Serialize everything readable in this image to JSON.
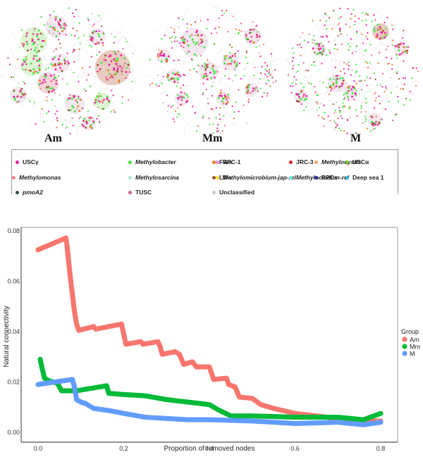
{
  "networks": [
    {
      "label": "Am"
    },
    {
      "label": "Mm"
    },
    {
      "label": "M"
    }
  ],
  "network_legend": [
    {
      "name": "USCγ",
      "italic": false,
      "color": "#ee1fa5"
    },
    {
      "name": "Methylobacter",
      "italic": true,
      "color": "#3fe53f"
    },
    {
      "name": "FWs",
      "italic": false,
      "color": "#e67e22"
    },
    {
      "name": "Methylocystis",
      "italic": true,
      "color": "#f0a070"
    },
    {
      "name": "RPC-1",
      "italic": false,
      "color": "#e57ee0"
    },
    {
      "name": "JRC-3",
      "italic": false,
      "color": "#e01f1f"
    },
    {
      "name": "USCα",
      "italic": false,
      "color": "#6cbf2a"
    },
    {
      "name": "Methylomonas",
      "italic": true,
      "color": "#f08080"
    },
    {
      "name": "Methylosarcina",
      "italic": true,
      "color": "#a8ecc8"
    },
    {
      "name": "LWs",
      "italic": false,
      "color": "#a0522d"
    },
    {
      "name": "RPCs",
      "italic": false,
      "color": "#3a3ae8"
    },
    {
      "name": "Methylomicrobium-jap-rel",
      "italic": true,
      "color": "#f0e030"
    },
    {
      "name": "Methylocaldum-rel",
      "italic": true,
      "color": "#70e8e8"
    },
    {
      "name": "Deep sea 1",
      "italic": false,
      "color": "#30b8e8"
    },
    {
      "name": "pmoA2",
      "italic": true,
      "color": "#2f4f3f"
    },
    {
      "name": "TUSC",
      "italic": false,
      "color": "#d0608a"
    },
    {
      "name": "Unclassified",
      "italic": false,
      "color": "#c8c8c8"
    }
  ],
  "chart_data": {
    "type": "scatter",
    "title": "",
    "xlabel": "Proportion of removed nodes",
    "ylabel": "Natural connectivity",
    "xlim": [
      -0.04,
      0.84
    ],
    "ylim": [
      -0.004,
      0.08
    ],
    "xticks": [
      "0.0",
      "0.2",
      "0.4",
      "0.6",
      "0.8"
    ],
    "yticks": [
      "0.00",
      "0.02",
      "0.04",
      "0.06",
      "0.08"
    ],
    "grid": false,
    "legend": {
      "title": "Group",
      "position": "right"
    },
    "series": [
      {
        "name": "Am",
        "color": "#f8766d",
        "points": [
          [
            0.0,
            0.0725
          ],
          [
            0.065,
            0.0772
          ],
          [
            0.067,
            0.075
          ],
          [
            0.07,
            0.07
          ],
          [
            0.075,
            0.062
          ],
          [
            0.08,
            0.055
          ],
          [
            0.085,
            0.048
          ],
          [
            0.09,
            0.043
          ],
          [
            0.095,
            0.0405
          ],
          [
            0.13,
            0.042
          ],
          [
            0.135,
            0.041
          ],
          [
            0.195,
            0.043
          ],
          [
            0.2,
            0.039
          ],
          [
            0.205,
            0.035
          ],
          [
            0.24,
            0.036
          ],
          [
            0.245,
            0.035
          ],
          [
            0.28,
            0.036
          ],
          [
            0.285,
            0.034
          ],
          [
            0.29,
            0.031
          ],
          [
            0.32,
            0.032
          ],
          [
            0.33,
            0.031
          ],
          [
            0.34,
            0.027
          ],
          [
            0.36,
            0.028
          ],
          [
            0.37,
            0.026
          ],
          [
            0.4,
            0.026
          ],
          [
            0.41,
            0.021
          ],
          [
            0.44,
            0.0215
          ],
          [
            0.445,
            0.019
          ],
          [
            0.46,
            0.018
          ],
          [
            0.47,
            0.014
          ],
          [
            0.5,
            0.0135
          ],
          [
            0.52,
            0.011
          ],
          [
            0.55,
            0.0095
          ],
          [
            0.6,
            0.0075
          ],
          [
            0.65,
            0.0065
          ],
          [
            0.7,
            0.0055
          ],
          [
            0.75,
            0.0045
          ],
          [
            0.8,
            0.0045
          ]
        ]
      },
      {
        "name": "Mm",
        "color": "#00ba38",
        "points": [
          [
            0.005,
            0.029
          ],
          [
            0.01,
            0.025
          ],
          [
            0.015,
            0.0215
          ],
          [
            0.025,
            0.0205
          ],
          [
            0.045,
            0.0195
          ],
          [
            0.055,
            0.0165
          ],
          [
            0.09,
            0.0165
          ],
          [
            0.16,
            0.0185
          ],
          [
            0.165,
            0.0155
          ],
          [
            0.2,
            0.015
          ],
          [
            0.25,
            0.0145
          ],
          [
            0.3,
            0.013
          ],
          [
            0.35,
            0.012
          ],
          [
            0.4,
            0.011
          ],
          [
            0.42,
            0.009
          ],
          [
            0.45,
            0.0065
          ],
          [
            0.5,
            0.0065
          ],
          [
            0.6,
            0.006
          ],
          [
            0.7,
            0.006
          ],
          [
            0.76,
            0.005
          ],
          [
            0.8,
            0.0075
          ]
        ]
      },
      {
        "name": "M",
        "color": "#619cff",
        "points": [
          [
            0.0,
            0.019
          ],
          [
            0.08,
            0.021
          ],
          [
            0.085,
            0.018
          ],
          [
            0.09,
            0.013
          ],
          [
            0.1,
            0.012
          ],
          [
            0.11,
            0.0115
          ],
          [
            0.13,
            0.0095
          ],
          [
            0.17,
            0.0085
          ],
          [
            0.2,
            0.0075
          ],
          [
            0.25,
            0.006
          ],
          [
            0.3,
            0.0055
          ],
          [
            0.35,
            0.005
          ],
          [
            0.4,
            0.005
          ],
          [
            0.5,
            0.0045
          ],
          [
            0.55,
            0.004
          ],
          [
            0.6,
            0.0035
          ],
          [
            0.7,
            0.004
          ],
          [
            0.76,
            0.003
          ],
          [
            0.8,
            0.004
          ]
        ]
      }
    ]
  }
}
